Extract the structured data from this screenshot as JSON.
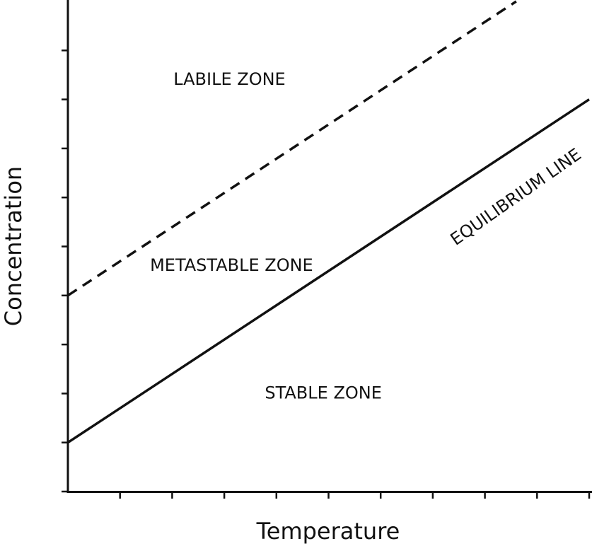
{
  "chart_data": {
    "type": "line",
    "title": "",
    "xlabel": "Temperature",
    "ylabel": "Concentration",
    "xlim": [
      0,
      10
    ],
    "ylim": [
      0,
      10
    ],
    "x_ticks": 10,
    "y_ticks": 10,
    "grid": false,
    "legend": "none",
    "series": [
      {
        "id": "supersolubility",
        "style": "dashed",
        "color": "#111111",
        "x": [
          0,
          8.6
        ],
        "y": [
          4.0,
          10.0
        ]
      },
      {
        "id": "equilibrium",
        "style": "solid",
        "color": "#111111",
        "x": [
          0,
          10
        ],
        "y": [
          1.0,
          8.0
        ]
      }
    ],
    "annotations": [
      {
        "key": "labile",
        "text": "LABILE ZONE",
        "x": 3.1,
        "y": 8.4,
        "rotate": 0
      },
      {
        "key": "metastable",
        "text": "METASTABLE ZONE",
        "x": 3.14,
        "y": 4.6,
        "rotate": 0
      },
      {
        "key": "stable",
        "text": "STABLE ZONE",
        "x": 4.9,
        "y": 2.0,
        "rotate": 0
      },
      {
        "key": "equilibrium",
        "text": "EQUILIBRIUM LINE",
        "x": 8.6,
        "y": 6.0,
        "rotate": -35
      }
    ]
  }
}
